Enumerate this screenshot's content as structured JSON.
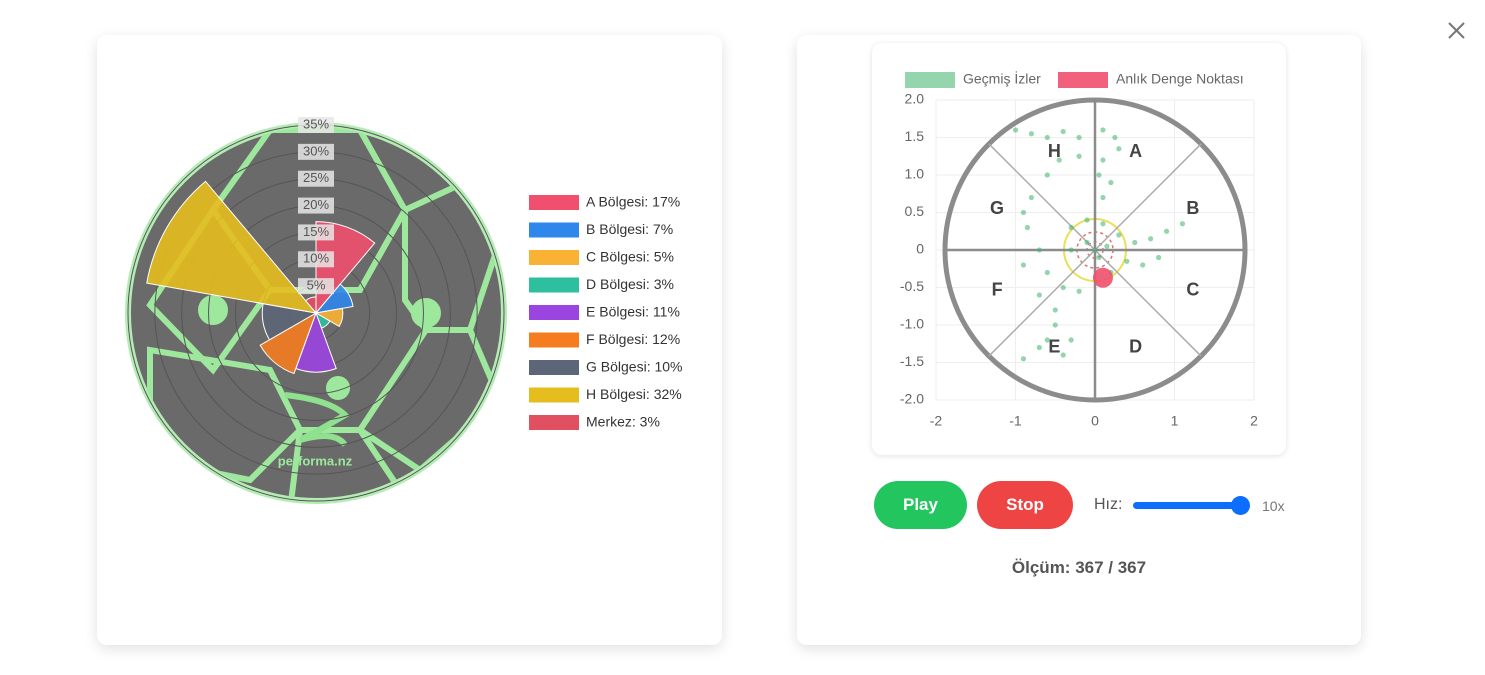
{
  "chart_data": [
    {
      "type": "polar",
      "categories": [
        "A Bölgesi: 17%",
        "B Bölgesi: 7%",
        "C Bölgesi: 5%",
        "D Bölgesi: 3%",
        "E Bölgesi: 11%",
        "F Bölgesi: 12%",
        "G Bölgesi: 10%",
        "H Bölgesi: 32%",
        "Merkez: 3%"
      ],
      "values": [
        17,
        7,
        5,
        3,
        11,
        12,
        10,
        32,
        3
      ],
      "colors": [
        "#f0506e",
        "#2f86eb",
        "#f9b233",
        "#2ebf9f",
        "#9b45e0",
        "#f57c1f",
        "#5d6678",
        "#e6bd1e",
        "#e05060"
      ],
      "rlim": [
        0,
        35
      ],
      "rticks": [
        {
          "value": 5,
          "label": "5%"
        },
        {
          "value": 10,
          "label": "10%"
        },
        {
          "value": 15,
          "label": "15%"
        },
        {
          "value": 20,
          "label": "20%"
        },
        {
          "value": 25,
          "label": "25%"
        },
        {
          "value": 30,
          "label": "30%"
        },
        {
          "value": 35,
          "label": "35%"
        }
      ],
      "logo": "performa.nz"
    },
    {
      "type": "scatter",
      "xlim": [
        -2,
        2
      ],
      "xticks": [
        -2,
        -1,
        0,
        1,
        2
      ],
      "ylim": [
        -2,
        2
      ],
      "yticks": [
        {
          "value": 2,
          "label": "2.0"
        },
        1.5,
        {
          "value": 1,
          "label": "1.0"
        },
        0.5,
        0,
        -0.5,
        {
          "value": -1,
          "label": "-1.0"
        },
        -1.5,
        {
          "value": -2,
          "label": "-2.0"
        }
      ],
      "grid": true,
      "zone_labels": [
        "A",
        "B",
        "C",
        "D",
        "E",
        "F",
        "G",
        "H"
      ],
      "series": [
        {
          "name": "Geçmiş İzler",
          "color": "#3cb36a",
          "x": [
            -1.0,
            -0.8,
            -0.6,
            -0.4,
            -0.2,
            0.1,
            0.25,
            0.3,
            0.1,
            -0.2,
            -0.45,
            -0.6,
            0.05,
            0.2,
            0.1,
            -0.8,
            -0.9,
            -0.85,
            -0.3,
            -0.1,
            0.1,
            0.3,
            0.5,
            0.7,
            0.9,
            1.1,
            0.8,
            0.6,
            0.4,
            -0.7,
            -0.9,
            -0.6,
            -0.4,
            -0.2,
            -0.7,
            -0.5,
            -0.5,
            -0.6,
            -0.7,
            -0.4,
            -0.3,
            -0.9,
            0.0,
            0.05,
            -0.1,
            0.2,
            -0.3,
            0.15
          ],
          "y": [
            1.6,
            1.55,
            1.5,
            1.58,
            1.5,
            1.6,
            1.5,
            1.35,
            1.2,
            1.25,
            1.2,
            1.0,
            1.0,
            0.9,
            0.7,
            0.7,
            0.5,
            0.3,
            0.3,
            0.4,
            0.35,
            0.2,
            0.1,
            0.15,
            0.25,
            0.35,
            -0.1,
            -0.2,
            -0.15,
            0.0,
            -0.2,
            -0.3,
            -0.5,
            -0.55,
            -0.6,
            -0.8,
            -1.0,
            -1.2,
            -1.3,
            -1.4,
            -1.2,
            -1.45,
            0.0,
            -0.1,
            0.1,
            -0.3,
            0.0,
            0.05
          ]
        },
        {
          "name": "Anlık Denge Noktası",
          "color": "#f0506e",
          "x": [
            0.1
          ],
          "y": [
            -0.37
          ]
        }
      ]
    }
  ],
  "controls": {
    "play": "Play",
    "stop": "Stop",
    "speed_label": "Hız:",
    "speed_value": "10x",
    "measurement": "Ölçüm: 367 / 367"
  }
}
